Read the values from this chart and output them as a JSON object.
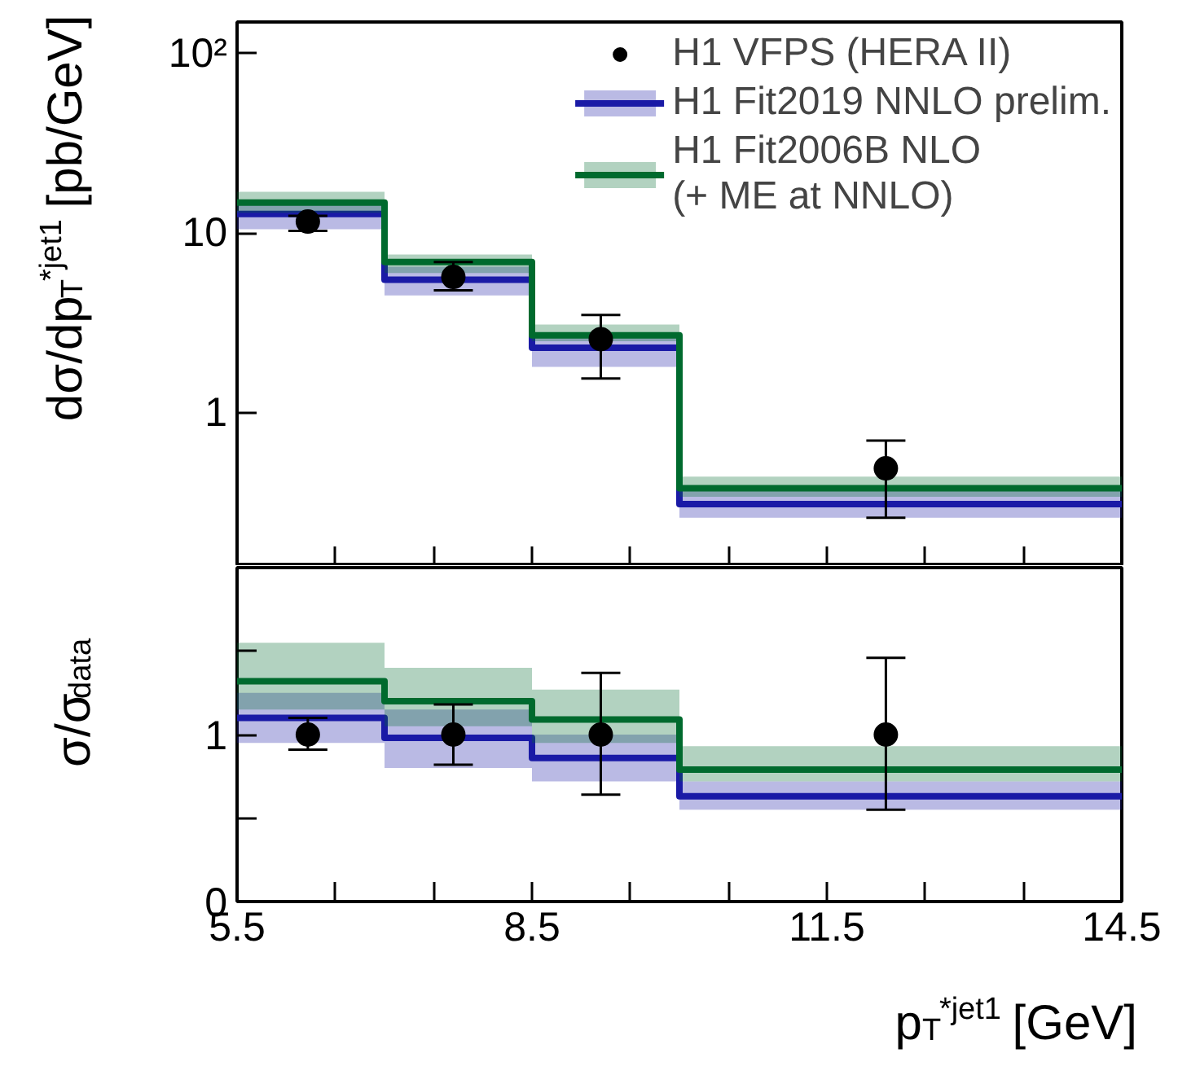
{
  "chart_data": [
    {
      "type": "step",
      "ylabel": "dσ/dp$_{T}$$^{*jet1}$ [pb/GeV]",
      "log": "y",
      "xlim": [
        5.5,
        14.5
      ],
      "ylim": [
        0.14,
        150
      ],
      "xticks": [
        5.5,
        {
          "value": 6.5,
          "label": null
        },
        {
          "value": 7.5,
          "label": null
        },
        8.5,
        {
          "value": 9.5,
          "label": null
        },
        {
          "value": 10.5,
          "label": null
        },
        11.5,
        {
          "value": 12.5,
          "label": null
        },
        {
          "value": 13.5,
          "label": null
        },
        14.5
      ],
      "yticks": [
        1,
        10,
        {
          "value": 100,
          "label": "10²"
        }
      ],
      "tick_labels": "y",
      "legend": "top right",
      "grid": false,
      "series": [
        {
          "name": "H1 VFPS (HERA II)",
          "type": "scatter",
          "marker": "circle",
          "color": "#000000",
          "x": [
            6.22,
            7.7,
            9.2,
            12.1
          ],
          "values": [
            11.6,
            5.7,
            2.57,
            0.49
          ],
          "errors": [
            [
              10.3,
              12.5
            ],
            [
              4.8,
              6.9
            ],
            [
              1.55,
              3.5
            ],
            [
              0.26,
              0.7
            ]
          ]
        },
        {
          "name": "H1 Fit2019 NNLO prelim.",
          "color": "#1a1aa6",
          "x": [
            5.5,
            7,
            8.5,
            10,
            14.5
          ],
          "values": [
            12.8,
            5.5,
            2.3,
            0.31,
            0.31
          ],
          "lower": [
            10.5,
            4.5,
            1.8,
            0.26,
            0.26
          ],
          "upper": [
            15,
            6.5,
            2.7,
            0.37,
            0.37
          ]
        },
        {
          "name": "H1 Fit2006B NLO\n(+ ME at NNLO)",
          "color": "#006a2e",
          "x": [
            5.5,
            7,
            8.5,
            10,
            14.5
          ],
          "values": [
            14.8,
            6.9,
            2.7,
            0.38,
            0.38
          ],
          "lower": [
            13,
            6,
            2.5,
            0.34,
            0.34
          ],
          "upper": [
            17,
            7.6,
            3.1,
            0.44,
            0.44
          ]
        }
      ]
    },
    {
      "type": "step",
      "ylabel": "σ/σ$_{data}$",
      "xlabel": "p$_{T}$$^{*jet1}$ [GeV]",
      "xlim": [
        5.5,
        14.5
      ],
      "ylim": [
        0,
        2
      ],
      "xticks": [
        5.5,
        {
          "value": 6.5,
          "label": null
        },
        {
          "value": 7.5,
          "label": null
        },
        8.5,
        {
          "value": 9.5,
          "label": null
        },
        {
          "value": 10.5,
          "label": null
        },
        11.5,
        {
          "value": 12.5,
          "label": null
        },
        {
          "value": 13.5,
          "label": null
        },
        14.5
      ],
      "yticks": [
        0,
        {
          "value": 0.5,
          "label": null
        },
        1,
        {
          "value": 1.5,
          "label": null
        }
      ],
      "grid": false,
      "series": [
        {
          "type": "scatter",
          "marker": "circle",
          "color": "#000000",
          "x": [
            6.22,
            7.7,
            9.2,
            12.1
          ],
          "values": [
            1,
            1,
            1,
            1
          ],
          "errors": [
            [
              0.91,
              1.1
            ],
            [
              0.82,
              1.18
            ],
            [
              0.64,
              1.37
            ],
            [
              0.55,
              1.46
            ]
          ]
        },
        {
          "color": "#1a1aa6",
          "x": [
            5.5,
            7,
            8.5,
            10,
            14.5
          ],
          "values": [
            1.1,
            0.98,
            0.86,
            0.63,
            0.63
          ],
          "lower": [
            0.95,
            0.8,
            0.72,
            0.55,
            0.55
          ],
          "upper": [
            1.25,
            1.15,
            1.0,
            0.72,
            0.72
          ]
        },
        {
          "color": "#006a2e",
          "x": [
            5.5,
            7,
            8.5,
            10,
            14.5
          ],
          "values": [
            1.32,
            1.2,
            1.09,
            0.79,
            0.79
          ],
          "lower": [
            1.15,
            1.05,
            0.95,
            0.72,
            0.72
          ],
          "upper": [
            1.55,
            1.4,
            1.27,
            0.93,
            0.93
          ]
        }
      ]
    }
  ]
}
